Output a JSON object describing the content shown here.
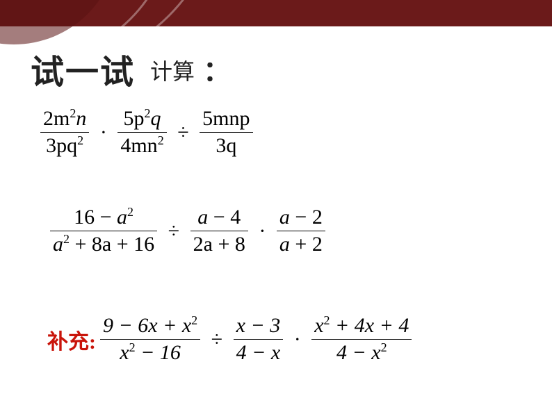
{
  "header": {
    "background_color": "#6b1a1a",
    "arc_color": "rgba(255,255,255,0.35)"
  },
  "title": {
    "main": "试一试",
    "sub": "计算",
    "colon": "："
  },
  "expressions": {
    "e1": {
      "f1_num": "2m",
      "f1_num_exp": "2",
      "f1_num_tail": "n",
      "f1_den": "3pq",
      "f1_den_exp": "2",
      "op1": "·",
      "f2_num": "5p",
      "f2_num_exp": "2",
      "f2_num_tail": "q",
      "f2_den": "4mn",
      "f2_den_exp": "2",
      "op2": "÷",
      "f3_num": "5mnp",
      "f3_den": "3q"
    },
    "e2": {
      "f1_num_a": "16",
      "f1_num_minus": "−",
      "f1_num_b": "a",
      "f1_num_exp": "2",
      "f1_den_a": "a",
      "f1_den_exp1": "2",
      "f1_den_plus1": "+",
      "f1_den_b": "8a",
      "f1_den_plus2": "+",
      "f1_den_c": "16",
      "op1": "÷",
      "f2_num": "a",
      "f2_num_minus": "−",
      "f2_num_b": "4",
      "f2_den": "2a",
      "f2_den_plus": "+",
      "f2_den_b": "8",
      "op2": "·",
      "f3_num": "a",
      "f3_num_minus": "−",
      "f3_num_b": "2",
      "f3_den": "a",
      "f3_den_plus": "+",
      "f3_den_b": "2"
    },
    "e3": {
      "label": "补充:",
      "f1_num_a": "9",
      "f1_num_m1": "−",
      "f1_num_b": "6x",
      "f1_num_p": "+",
      "f1_num_c": "x",
      "f1_num_exp": "2",
      "f1_den_a": "x",
      "f1_den_exp": "2",
      "f1_den_m": "−",
      "f1_den_b": "16",
      "op1": "÷",
      "f2_num_a": "x",
      "f2_num_m": "−",
      "f2_num_b": "3",
      "f2_den_a": "4",
      "f2_den_m": "−",
      "f2_den_b": "x",
      "op2": "·",
      "f3_num_a": "x",
      "f3_num_exp": "2",
      "f3_num_p1": "+",
      "f3_num_b": "4x",
      "f3_num_p2": "+",
      "f3_num_c": "4",
      "f3_den_a": "4",
      "f3_den_m": "−",
      "f3_den_b": "x",
      "f3_den_exp": "2"
    }
  },
  "colors": {
    "text": "#000000",
    "accent": "#c9140a",
    "background": "#ffffff"
  }
}
